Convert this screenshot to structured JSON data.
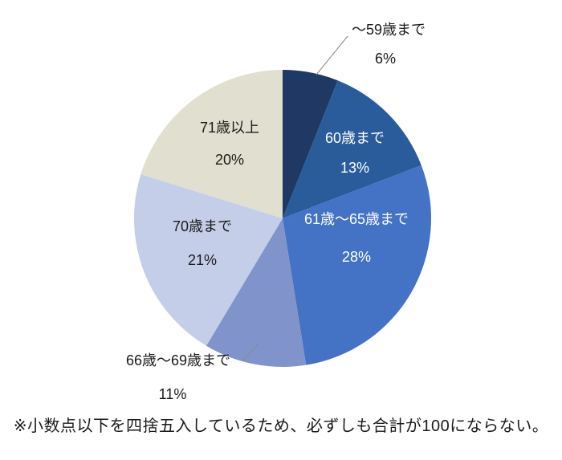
{
  "chart_data": {
    "type": "pie",
    "title": "",
    "legend": "none",
    "background": "#FFFFFF",
    "leader_line_color": "#8A8A8A",
    "direction": "clockwise",
    "start_angle_deg": 0,
    "slices": [
      {
        "label": "〜59歳まで",
        "value": 6,
        "pct_label": "6%",
        "color": "#1F3864",
        "text_color": "#1A1A1A",
        "placement": "outside"
      },
      {
        "label": "60歳まで",
        "value": 13,
        "pct_label": "13%",
        "color": "#2A5C9B",
        "text_color": "#FFFFFF",
        "placement": "inside"
      },
      {
        "label": "61歳〜65歳まで",
        "value": 28,
        "pct_label": "28%",
        "color": "#4472C4",
        "text_color": "#FFFFFF",
        "placement": "inside"
      },
      {
        "label": "66歳〜69歳まで",
        "value": 11,
        "pct_label": "11%",
        "color": "#8093CB",
        "text_color": "#1A1A1A",
        "placement": "outside"
      },
      {
        "label": "70歳まで",
        "value": 21,
        "pct_label": "21%",
        "color": "#C5CEE9",
        "text_color": "#1A1A1A",
        "placement": "inside"
      },
      {
        "label": "71歳以上",
        "value": 20,
        "pct_label": "20%",
        "color": "#E0DFD0",
        "text_color": "#1A1A1A",
        "placement": "inside"
      }
    ],
    "footnote": "※小数点以下を四捨五入しているため、必ずしも合計が100にならない。"
  }
}
